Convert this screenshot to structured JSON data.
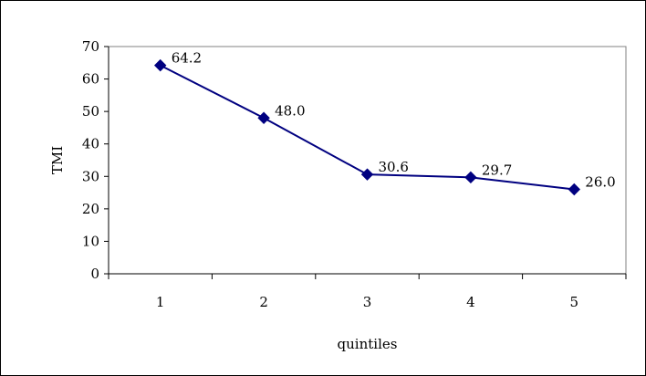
{
  "chart_data": {
    "type": "line",
    "title": "",
    "xlabel": "quintiles",
    "ylabel": "TMI",
    "categories": [
      "1",
      "2",
      "3",
      "4",
      "5"
    ],
    "series": [
      {
        "values": [
          64.2,
          48.0,
          30.6,
          29.7,
          26.0
        ],
        "data_labels": [
          "64.2",
          "48.0",
          "30.6",
          "29.7",
          "26.0"
        ],
        "color": "#000080",
        "marker": "diamond"
      }
    ],
    "ylim": [
      0,
      70
    ],
    "yticks": [
      0,
      10,
      20,
      30,
      40,
      50,
      60,
      70
    ],
    "ytick_labels": [
      "0",
      "10",
      "20",
      "30",
      "40",
      "50",
      "60",
      "70"
    ],
    "grid": false,
    "legend": "none",
    "colors": {
      "plot_border": "#808080",
      "axis": "#000000",
      "series": "#000080"
    }
  }
}
